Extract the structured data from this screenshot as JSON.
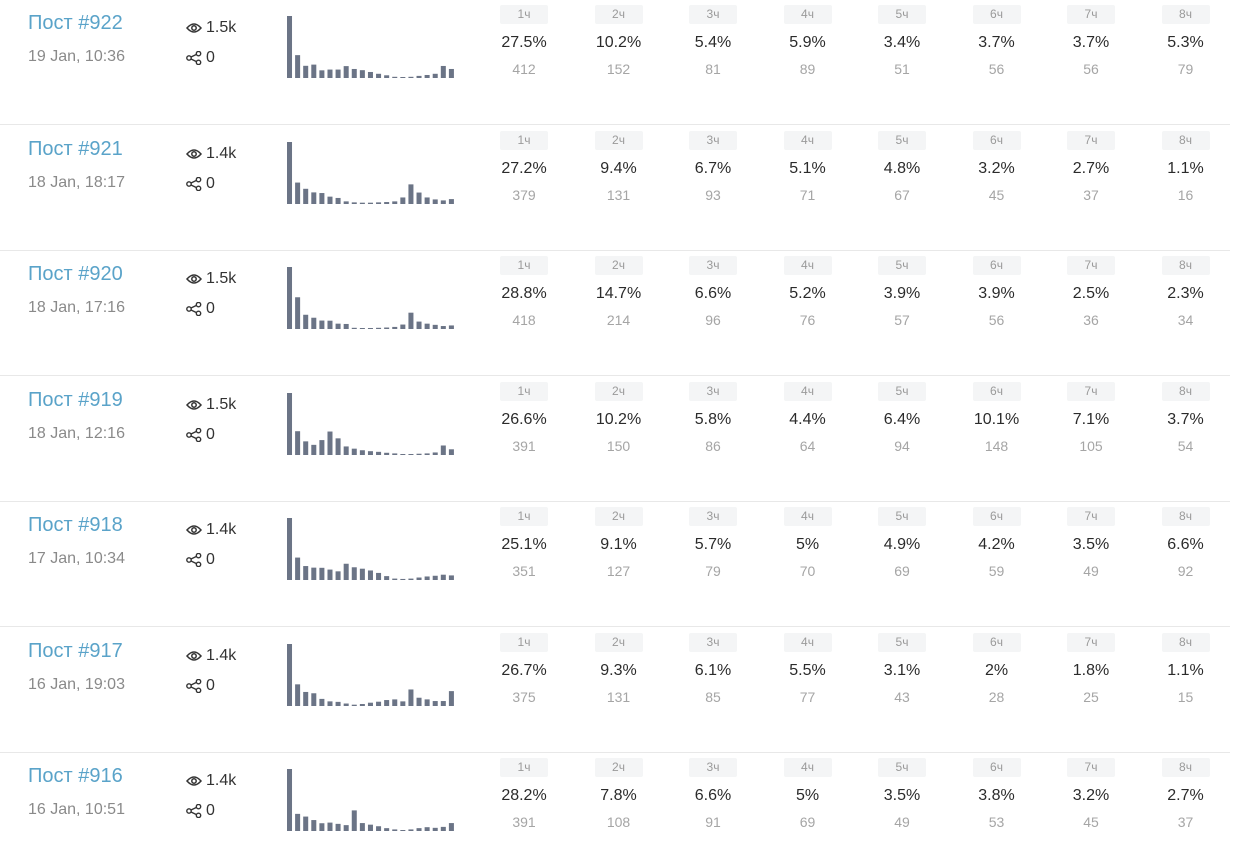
{
  "columns": [
    "1ч",
    "2ч",
    "3ч",
    "4ч",
    "5ч",
    "6ч",
    "7ч",
    "8ч"
  ],
  "posts": [
    {
      "title": "Пост #922",
      "date": "19 Jan, 10:36",
      "views": "1.5k",
      "shares": "0",
      "hourly": [
        {
          "pct": "27.5%",
          "count": "412"
        },
        {
          "pct": "10.2%",
          "count": "152"
        },
        {
          "pct": "5.4%",
          "count": "81"
        },
        {
          "pct": "5.9%",
          "count": "89"
        },
        {
          "pct": "3.4%",
          "count": "51"
        },
        {
          "pct": "3.7%",
          "count": "56"
        },
        {
          "pct": "3.7%",
          "count": "56"
        },
        {
          "pct": "5.3%",
          "count": "79"
        }
      ],
      "sparkline": [
        412,
        152,
        81,
        89,
        51,
        56,
        56,
        79,
        60,
        52,
        40,
        28,
        18,
        8,
        6,
        8,
        14,
        20,
        28,
        80,
        60
      ]
    },
    {
      "title": "Пост #921",
      "date": "18 Jan, 18:17",
      "views": "1.4k",
      "shares": "0",
      "hourly": [
        {
          "pct": "27.2%",
          "count": "379"
        },
        {
          "pct": "9.4%",
          "count": "131"
        },
        {
          "pct": "6.7%",
          "count": "93"
        },
        {
          "pct": "5.1%",
          "count": "71"
        },
        {
          "pct": "4.8%",
          "count": "67"
        },
        {
          "pct": "3.2%",
          "count": "45"
        },
        {
          "pct": "2.7%",
          "count": "37"
        },
        {
          "pct": "1.1%",
          "count": "16"
        }
      ],
      "sparkline": [
        379,
        131,
        93,
        71,
        67,
        45,
        37,
        16,
        10,
        8,
        8,
        10,
        12,
        16,
        40,
        120,
        70,
        40,
        28,
        22,
        30
      ]
    },
    {
      "title": "Пост #920",
      "date": "18 Jan, 17:16",
      "views": "1.5k",
      "shares": "0",
      "hourly": [
        {
          "pct": "28.8%",
          "count": "418"
        },
        {
          "pct": "14.7%",
          "count": "214"
        },
        {
          "pct": "6.6%",
          "count": "96"
        },
        {
          "pct": "5.2%",
          "count": "76"
        },
        {
          "pct": "3.9%",
          "count": "57"
        },
        {
          "pct": "3.9%",
          "count": "56"
        },
        {
          "pct": "2.5%",
          "count": "36"
        },
        {
          "pct": "2.3%",
          "count": "34"
        }
      ],
      "sparkline": [
        418,
        214,
        96,
        76,
        57,
        56,
        36,
        34,
        8,
        6,
        6,
        8,
        10,
        14,
        30,
        110,
        50,
        36,
        28,
        20,
        24
      ]
    },
    {
      "title": "Пост #919",
      "date": "18 Jan, 12:16",
      "views": "1.5k",
      "shares": "0",
      "hourly": [
        {
          "pct": "26.6%",
          "count": "391"
        },
        {
          "pct": "10.2%",
          "count": "150"
        },
        {
          "pct": "5.8%",
          "count": "86"
        },
        {
          "pct": "4.4%",
          "count": "64"
        },
        {
          "pct": "6.4%",
          "count": "94"
        },
        {
          "pct": "10.1%",
          "count": "148"
        },
        {
          "pct": "7.1%",
          "count": "105"
        },
        {
          "pct": "3.7%",
          "count": "54"
        }
      ],
      "sparkline": [
        391,
        150,
        86,
        64,
        94,
        148,
        105,
        54,
        40,
        30,
        24,
        20,
        14,
        10,
        6,
        6,
        8,
        10,
        16,
        60,
        36
      ]
    },
    {
      "title": "Пост #918",
      "date": "17 Jan, 10:34",
      "views": "1.4k",
      "shares": "0",
      "hourly": [
        {
          "pct": "25.1%",
          "count": "351"
        },
        {
          "pct": "9.1%",
          "count": "127"
        },
        {
          "pct": "5.7%",
          "count": "79"
        },
        {
          "pct": "5%",
          "count": "70"
        },
        {
          "pct": "4.9%",
          "count": "69"
        },
        {
          "pct": "4.2%",
          "count": "59"
        },
        {
          "pct": "3.5%",
          "count": "49"
        },
        {
          "pct": "6.6%",
          "count": "92"
        }
      ],
      "sparkline": [
        351,
        127,
        79,
        70,
        69,
        59,
        49,
        92,
        72,
        64,
        54,
        40,
        22,
        8,
        6,
        8,
        14,
        20,
        24,
        30,
        26
      ]
    },
    {
      "title": "Пост #917",
      "date": "16 Jan, 19:03",
      "views": "1.4k",
      "shares": "0",
      "hourly": [
        {
          "pct": "26.7%",
          "count": "375"
        },
        {
          "pct": "9.3%",
          "count": "131"
        },
        {
          "pct": "6.1%",
          "count": "85"
        },
        {
          "pct": "5.5%",
          "count": "77"
        },
        {
          "pct": "3.1%",
          "count": "43"
        },
        {
          "pct": "2%",
          "count": "28"
        },
        {
          "pct": "1.8%",
          "count": "25"
        },
        {
          "pct": "1.1%",
          "count": "15"
        }
      ],
      "sparkline": [
        375,
        131,
        85,
        77,
        43,
        28,
        25,
        15,
        8,
        12,
        20,
        26,
        36,
        40,
        28,
        100,
        50,
        40,
        30,
        30,
        90
      ]
    },
    {
      "title": "Пост #916",
      "date": "16 Jan, 10:51",
      "views": "1.4k",
      "shares": "0",
      "hourly": [
        {
          "pct": "28.2%",
          "count": "391"
        },
        {
          "pct": "7.8%",
          "count": "108"
        },
        {
          "pct": "6.6%",
          "count": "91"
        },
        {
          "pct": "5%",
          "count": "69"
        },
        {
          "pct": "3.5%",
          "count": "49"
        },
        {
          "pct": "3.8%",
          "count": "53"
        },
        {
          "pct": "3.2%",
          "count": "45"
        },
        {
          "pct": "2.7%",
          "count": "37"
        }
      ],
      "sparkline": [
        391,
        108,
        91,
        69,
        49,
        53,
        45,
        37,
        130,
        50,
        40,
        30,
        18,
        10,
        6,
        10,
        18,
        24,
        20,
        26,
        50
      ]
    }
  ],
  "icons": {
    "views": "eye-icon",
    "shares": "share-icon"
  },
  "colors": {
    "title": "#5aa3c9",
    "bar": "#6b7486",
    "chip": "#f4f5f6"
  }
}
